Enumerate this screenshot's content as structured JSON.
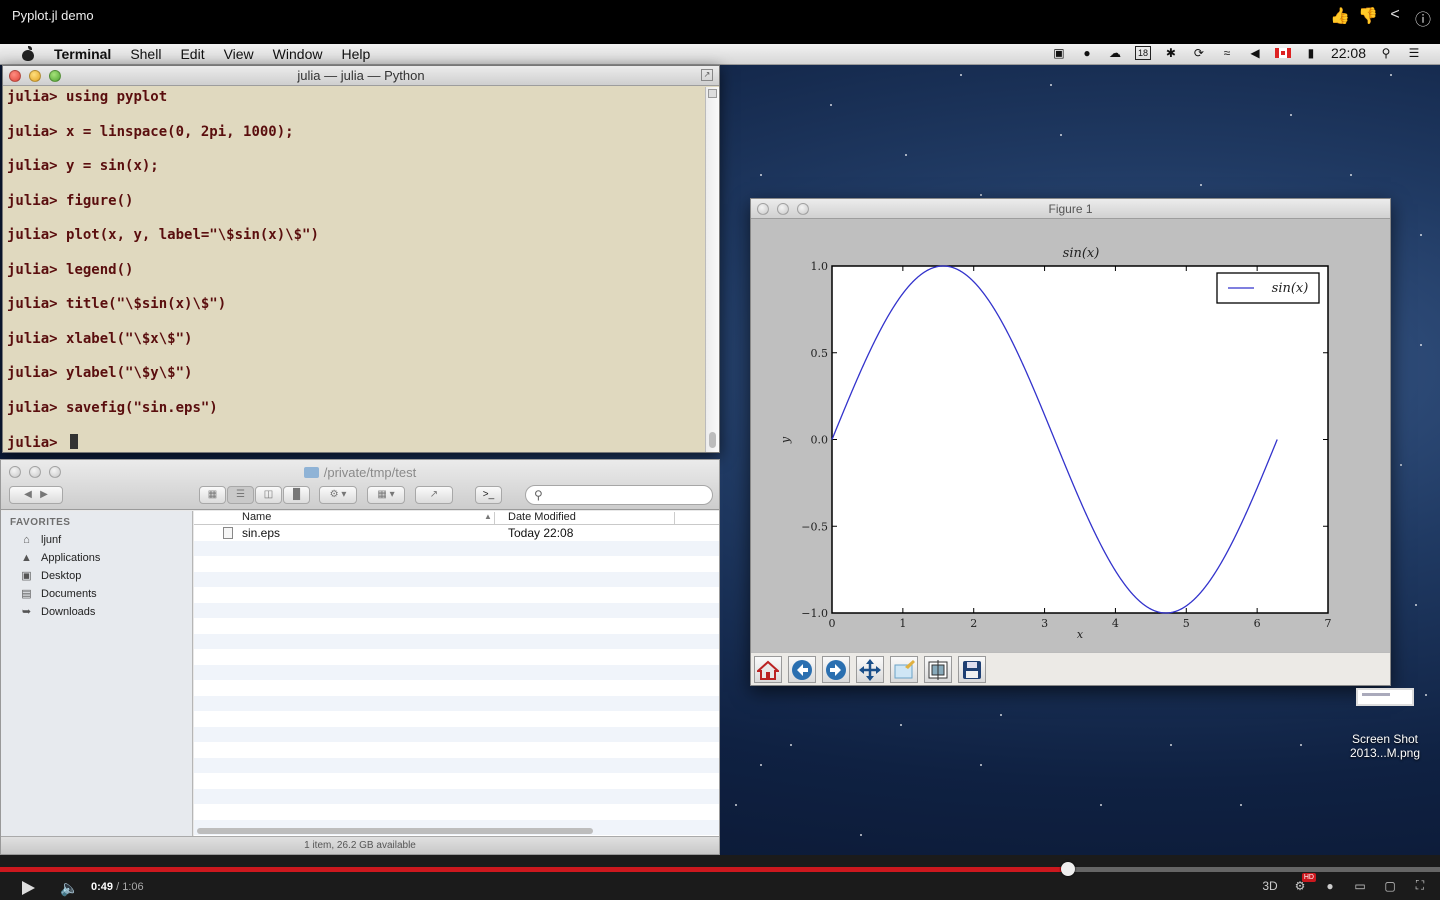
{
  "video": {
    "title": "Pyplot.jl demo",
    "current_time": "0:49",
    "duration": "/ 1:06",
    "progress_fraction": 0.742,
    "quality_badge": "HD",
    "three_d_label": "3D",
    "top_icons": [
      "thumbs-up-icon",
      "thumbs-down-icon",
      "share-icon",
      "info-icon"
    ]
  },
  "menubar": {
    "app_name": "Terminal",
    "items": [
      "Shell",
      "Edit",
      "View",
      "Window",
      "Help"
    ],
    "clock": "22:08",
    "status_icons": [
      "screen-record-icon",
      "record-dot-icon",
      "cloud-icon",
      "calendar-18-icon",
      "asterisk-icon",
      "sync-icon",
      "wifi-icon",
      "volume-icon",
      "canada-flag-icon",
      "battery-icon",
      "search-icon",
      "list-icon"
    ],
    "calendar_badge": "18"
  },
  "terminal": {
    "title": "julia — julia — Python",
    "prompt": "julia>",
    "lines": [
      "using pyplot",
      "x = linspace(0, 2pi, 1000);",
      "y = sin(x);",
      "figure()",
      "plot(x, y, label=\"\\$sin(x)\\$\")",
      "legend()",
      "title(\"\\$sin(x)\\$\")",
      "xlabel(\"\\$x\\$\")",
      "ylabel(\"\\$y\\$\")",
      "savefig(\"sin.eps\")",
      ""
    ]
  },
  "finder": {
    "path": "/private/tmp/test",
    "favorites_label": "FAVORITES",
    "favorites": [
      {
        "label": "ljunf",
        "icon": "home-icon"
      },
      {
        "label": "Applications",
        "icon": "applications-icon"
      },
      {
        "label": "Desktop",
        "icon": "desktop-icon"
      },
      {
        "label": "Documents",
        "icon": "documents-icon"
      },
      {
        "label": "Downloads",
        "icon": "downloads-icon"
      }
    ],
    "columns": {
      "name": "Name",
      "date": "Date Modified"
    },
    "files": [
      {
        "name": "sin.eps",
        "date": "Today 22:08"
      }
    ],
    "status": "1 item, 26.2 GB available"
  },
  "figure": {
    "window_title": "Figure 1",
    "toolbar_icons": [
      "home-icon",
      "back-arrow-icon",
      "forward-arrow-icon",
      "pan-move-icon",
      "zoom-rect-icon",
      "configure-subplots-icon",
      "save-icon"
    ]
  },
  "chart_data": {
    "type": "line",
    "title": "sin(x)",
    "xlabel": "x",
    "ylabel": "y",
    "xlim": [
      0,
      7
    ],
    "ylim": [
      -1.0,
      1.0
    ],
    "xticks": [
      "0",
      "1",
      "2",
      "3",
      "4",
      "5",
      "6",
      "7"
    ],
    "yticks": [
      "1.0",
      "0.5",
      "0.0",
      "−0.5",
      "−1.0"
    ],
    "xtick_values": [
      0,
      1,
      2,
      3,
      4,
      5,
      6,
      7
    ],
    "ytick_values": [
      1.0,
      0.5,
      0.0,
      -0.5,
      -1.0
    ],
    "series": [
      {
        "name": "sin(x)",
        "function": "sin",
        "x_range": [
          0,
          6.2832
        ],
        "points": 1000,
        "color": "#3333cc"
      }
    ],
    "legend_position": "top-right",
    "grid": false
  },
  "desktop_file": {
    "label_line1": "Screen Shot",
    "label_line2": "2013...M.png"
  }
}
